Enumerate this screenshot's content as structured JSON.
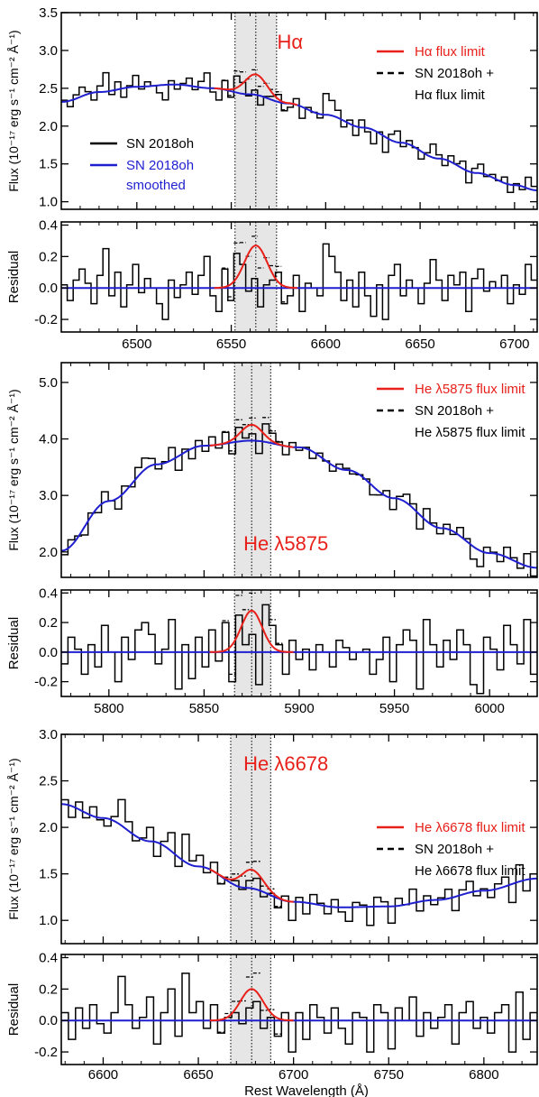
{
  "figure": {
    "xlabel": "Rest Wavelength (Å)",
    "flux_ylabel": "Flux (10⁻¹⁷ erg s⁻¹ cm⁻² Å⁻¹)",
    "residual_ylabel": "Residual"
  },
  "colors": {
    "observed": "#000000",
    "smoothed": "#1f1fd0",
    "flux_limit": "#e8201a",
    "band_fill": "#e6e6e6"
  },
  "chart_data": [
    {
      "type": "line",
      "line_label": "Hα",
      "label_position": "top",
      "xlim": [
        6460,
        6712
      ],
      "xticks": [
        6500,
        6550,
        6600,
        6650,
        6700
      ],
      "flux_ylim": [
        0.9,
        3.5
      ],
      "flux_yticks": [
        "1.0",
        "1.5",
        "2.0",
        "2.5",
        "3.0",
        "3.5"
      ],
      "residual_ylim": [
        -0.28,
        0.42
      ],
      "residual_yticks": [
        "-0.2",
        "0.0",
        "0.2",
        "0.4"
      ],
      "band": [
        6552,
        6574
      ],
      "center": 6563,
      "gaussian_amplitude": 0.27,
      "gaussian_sigma": 6.0,
      "legend": [
        {
          "key": "flux_limit",
          "style": "solid",
          "color": "#e8201a",
          "lines": [
            "Hα flux limit"
          ]
        },
        {
          "key": "combined",
          "style": "dashed",
          "color": "#000000",
          "lines": [
            "SN 2018oh +",
            "Hα flux limit"
          ]
        }
      ],
      "legend2": [
        {
          "key": "observed",
          "style": "solid",
          "color": "#000000",
          "lines": [
            "SN 2018oh"
          ]
        },
        {
          "key": "smoothed",
          "style": "solid",
          "color": "#1f1fd0",
          "lines": [
            "SN 2018oh",
            "smoothed"
          ]
        }
      ],
      "smooth": {
        "x": [
          6460,
          6480,
          6500,
          6520,
          6540,
          6560,
          6580,
          6600,
          6620,
          6640,
          6660,
          6680,
          6700,
          6712
        ],
        "y": [
          2.32,
          2.45,
          2.52,
          2.55,
          2.5,
          2.42,
          2.3,
          2.15,
          1.98,
          1.78,
          1.57,
          1.38,
          1.22,
          1.15
        ]
      },
      "observed_residuals": [
        0.02,
        -0.08,
        0.05,
        0.12,
        0.03,
        -0.1,
        0.08,
        0.25,
        -0.05,
        0.1,
        -0.12,
        0.02,
        0.15,
        -0.03,
        0.06,
        0.0,
        -0.1,
        -0.2,
        0.05,
        -0.06,
        0.02,
        0.1,
        -0.04,
        0.08,
        0.2,
        -0.05,
        -0.15,
        0.12,
        -0.08,
        0.22,
        0.15,
        -0.02,
        0.06,
        -0.12,
        0.02,
        0.05,
        0.1,
        -0.1,
        -0.05,
        0.08,
        -0.15,
        0.03,
        0.0,
        -0.05,
        0.28,
        0.2,
        0.1,
        -0.08,
        0.05,
        -0.12,
        0.1,
        -0.05,
        -0.18,
        0.02,
        -0.2,
        0.08,
        0.15,
        -0.05,
        0.05,
        0.0,
        -0.1,
        0.03,
        0.18,
        0.05,
        -0.08,
        0.08,
        0.02,
        0.1,
        -0.15,
        0.06,
        0.12,
        -0.02,
        0.04,
        0.0,
        0.08,
        -0.1,
        0.02,
        -0.04,
        0.15,
        0.05
      ]
    },
    {
      "type": "line",
      "line_label": "He λ5875",
      "label_position": "bottom",
      "xlim": [
        5775,
        6025
      ],
      "xticks": [
        5800,
        5850,
        5900,
        5950,
        6000
      ],
      "flux_ylim": [
        1.55,
        5.35
      ],
      "flux_yticks": [
        "2.0",
        "3.0",
        "4.0",
        "5.0"
      ],
      "residual_ylim": [
        -0.3,
        0.42
      ],
      "residual_yticks": [
        "-0.2",
        "0.0",
        "0.2",
        "0.4"
      ],
      "band": [
        5866,
        5885
      ],
      "center": 5875,
      "gaussian_amplitude": 0.28,
      "gaussian_sigma": 5.5,
      "legend": [
        {
          "key": "flux_limit",
          "style": "solid",
          "color": "#e8201a",
          "lines": [
            "He λ5875 flux limit"
          ]
        },
        {
          "key": "combined",
          "style": "dashed",
          "color": "#000000",
          "lines": [
            "SN 2018oh +",
            "He λ5875 flux limit"
          ]
        }
      ],
      "legend2": [],
      "smooth": {
        "x": [
          5775,
          5800,
          5825,
          5850,
          5875,
          5900,
          5925,
          5950,
          5975,
          6000,
          6025
        ],
        "y": [
          2.02,
          2.9,
          3.55,
          3.88,
          3.97,
          3.85,
          3.45,
          2.95,
          2.42,
          1.98,
          1.72
        ]
      },
      "observed_residuals": [
        -0.08,
        0.1,
        0.02,
        -0.15,
        0.05,
        -0.1,
        0.18,
        0.0,
        -0.2,
        0.1,
        -0.05,
        0.15,
        0.2,
        0.12,
        -0.08,
        0.02,
        0.22,
        -0.25,
        0.05,
        -0.18,
        0.1,
        -0.1,
        0.15,
        -0.06,
        0.2,
        -0.2,
        0.25,
        0.05,
        0.12,
        -0.22,
        0.32,
        0.18,
        0.05,
        -0.15,
        0.08,
        -0.05,
        0.02,
        -0.12,
        0.05,
        0.0,
        -0.1,
        0.08,
        0.03,
        -0.05,
        0.0,
        0.02,
        -0.15,
        -0.05,
        0.1,
        -0.2,
        0.05,
        0.15,
        0.08,
        -0.25,
        0.22,
        0.05,
        -0.1,
        0.08,
        -0.05,
        0.15,
        0.05,
        -0.22,
        -0.28,
        0.1,
        0.02,
        -0.12,
        0.18,
        0.05,
        -0.08,
        0.22,
        -0.15
      ]
    },
    {
      "type": "line",
      "line_label": "He λ6678",
      "label_position": "top",
      "xlim": [
        6578,
        6828
      ],
      "xticks": [
        6600,
        6650,
        6700,
        6750,
        6800
      ],
      "flux_ylim": [
        0.75,
        3.0
      ],
      "flux_yticks": [
        "1.0",
        "1.5",
        "2.0",
        "2.5",
        "3.0"
      ],
      "residual_ylim": [
        -0.28,
        0.42
      ],
      "residual_yticks": [
        "-0.2",
        "0.0",
        "0.2",
        "0.4"
      ],
      "band": [
        6667,
        6688
      ],
      "center": 6678,
      "gaussian_amplitude": 0.2,
      "gaussian_sigma": 6.0,
      "legend": [
        {
          "key": "flux_limit",
          "style": "solid",
          "color": "#e8201a",
          "lines": [
            "He λ6678 flux limit"
          ]
        },
        {
          "key": "combined",
          "style": "dashed",
          "color": "#000000",
          "lines": [
            "SN 2018oh +",
            "He λ6678 flux limit"
          ]
        }
      ],
      "legend2": [],
      "smooth": {
        "x": [
          6578,
          6600,
          6625,
          6650,
          6675,
          6700,
          6725,
          6750,
          6775,
          6800,
          6828
        ],
        "y": [
          2.25,
          2.1,
          1.85,
          1.58,
          1.35,
          1.2,
          1.14,
          1.15,
          1.22,
          1.32,
          1.45
        ]
      },
      "observed_residuals": [
        0.05,
        -0.12,
        0.08,
        -0.05,
        0.1,
        -0.02,
        -0.08,
        0.05,
        0.28,
        0.1,
        -0.05,
        0.02,
        0.15,
        -0.15,
        0.05,
        0.2,
        -0.1,
        0.3,
        0.05,
        0.12,
        -0.05,
        0.1,
        -0.08,
        0.02,
        0.05,
        -0.02,
        0.08,
        0.12,
        -0.05,
        0.02,
        -0.1,
        0.05,
        -0.2,
        0.05,
        -0.12,
        0.1,
        0.02,
        -0.08,
        0.08,
        -0.05,
        -0.15,
        0.05,
        0.02,
        -0.2,
        0.1,
        0.05,
        -0.18,
        0.08,
        0.0,
        0.15,
        -0.1,
        0.05,
        -0.05,
        0.02,
        0.1,
        -0.15,
        0.05,
        0.12,
        -0.05,
        0.02,
        -0.08,
        0.05,
        0.1,
        -0.2,
        0.18,
        -0.12,
        0.05
      ]
    }
  ]
}
